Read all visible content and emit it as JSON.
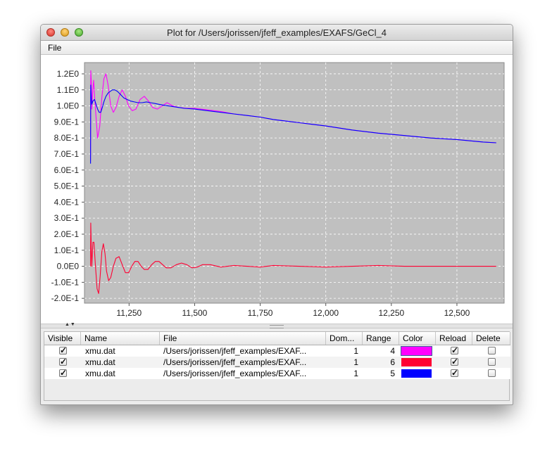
{
  "window": {
    "title": "Plot for /Users/jorissen/jfeff_examples/EXAFS/GeCl_4"
  },
  "menu": {
    "file": "File"
  },
  "chart_data": {
    "type": "line",
    "title": "",
    "xlabel": "",
    "ylabel": "",
    "xlim": [
      11080,
      12680
    ],
    "ylim": [
      -0.23,
      1.27
    ],
    "grid": true,
    "x_ticks": [
      11250,
      11500,
      11750,
      12000,
      12250,
      12500
    ],
    "x_tick_labels": [
      "11,250",
      "11,500",
      "11,750",
      "12,000",
      "12,250",
      "12,500"
    ],
    "y_ticks": [
      1.2,
      1.1,
      1.0,
      0.9,
      0.8,
      0.7,
      0.6,
      0.5,
      0.4,
      0.3,
      0.2,
      0.1,
      0.0,
      -0.1,
      -0.2
    ],
    "y_tick_labels": [
      "1.2E0",
      "1.1E0",
      "1.0E0",
      "9.0E-1",
      "8.0E-1",
      "7.0E-1",
      "6.0E-1",
      "5.0E-1",
      "4.0E-1",
      "3.0E-1",
      "2.0E-1",
      "1.0E-1",
      "0.0E0",
      "-1.0E-1",
      "-2.0E-1"
    ],
    "series": [
      {
        "color": "#ff00ff",
        "x": [
          11103,
          11104,
          11106,
          11108,
          11111,
          11115,
          11119,
          11124,
          11130,
          11138,
          11146,
          11154,
          11162,
          11170,
          11180,
          11190,
          11200,
          11212,
          11224,
          11236,
          11248,
          11262,
          11276,
          11292,
          11308,
          11324,
          11340,
          11358,
          11376,
          11395,
          11416,
          11440,
          11470,
          11500,
          11550,
          11600,
          11650,
          11700,
          11750,
          11800,
          11850,
          11900,
          11950,
          12000,
          12100,
          12200,
          12300,
          12400,
          12500,
          12600,
          12650
        ],
        "y": [
          0.66,
          1.22,
          1.15,
          0.98,
          1.08,
          1.16,
          1.05,
          0.93,
          0.8,
          0.87,
          1.05,
          1.17,
          1.2,
          1.13,
          1.0,
          0.96,
          0.99,
          1.06,
          1.1,
          1.06,
          1.0,
          0.97,
          0.98,
          1.04,
          1.06,
          1.03,
          0.99,
          0.98,
          1.0,
          1.02,
          1.0,
          0.99,
          0.985,
          0.985,
          0.975,
          0.965,
          0.95,
          0.94,
          0.93,
          0.915,
          0.905,
          0.895,
          0.885,
          0.875,
          0.85,
          0.83,
          0.815,
          0.8,
          0.79,
          0.775,
          0.77
        ]
      },
      {
        "color": "#ff0033",
        "x": [
          11103,
          11104,
          11106,
          11108,
          11112,
          11116,
          11122,
          11128,
          11134,
          11140,
          11146,
          11152,
          11158,
          11164,
          11172,
          11180,
          11190,
          11200,
          11212,
          11224,
          11236,
          11248,
          11260,
          11272,
          11284,
          11296,
          11308,
          11322,
          11336,
          11350,
          11364,
          11378,
          11392,
          11410,
          11430,
          11450,
          11470,
          11490,
          11510,
          11530,
          11560,
          11600,
          11650,
          11700,
          11750,
          11800,
          11900,
          12000,
          12100,
          12200,
          12300,
          12400,
          12500,
          12650
        ],
        "y": [
          0.0,
          0.27,
          0.1,
          0.0,
          0.15,
          0.15,
          0.0,
          -0.14,
          -0.17,
          -0.06,
          0.09,
          0.14,
          0.08,
          -0.03,
          -0.09,
          -0.07,
          0.0,
          0.05,
          0.06,
          0.01,
          -0.04,
          -0.04,
          0.0,
          0.03,
          0.03,
          0.0,
          -0.02,
          -0.02,
          0.01,
          0.03,
          0.03,
          0.01,
          -0.01,
          -0.01,
          0.01,
          0.02,
          0.01,
          -0.01,
          -0.005,
          0.01,
          0.01,
          -0.005,
          0.005,
          0.0,
          -0.005,
          0.005,
          0.0,
          -0.005,
          0.0,
          0.005,
          0.0,
          0.0,
          0.0,
          0.0
        ]
      },
      {
        "color": "#0000ff",
        "x": [
          11103,
          11104,
          11106,
          11108,
          11112,
          11118,
          11124,
          11130,
          11136,
          11142,
          11148,
          11155,
          11162,
          11170,
          11178,
          11186,
          11196,
          11206,
          11218,
          11230,
          11242,
          11256,
          11270,
          11284,
          11300,
          11316,
          11332,
          11348,
          11364,
          11380,
          11400,
          11420,
          11440,
          11460,
          11500,
          11550,
          11600,
          11650,
          11700,
          11750,
          11800,
          11850,
          11900,
          11950,
          12000,
          12100,
          12200,
          12300,
          12400,
          12500,
          12600,
          12650
        ],
        "y": [
          0.64,
          1.13,
          1.05,
          1.01,
          1.03,
          1.04,
          1.01,
          0.98,
          0.96,
          0.96,
          0.99,
          1.03,
          1.06,
          1.08,
          1.09,
          1.1,
          1.1,
          1.09,
          1.07,
          1.05,
          1.04,
          1.03,
          1.025,
          1.02,
          1.02,
          1.025,
          1.02,
          1.015,
          1.01,
          1.005,
          1.0,
          0.995,
          0.99,
          0.985,
          0.98,
          0.97,
          0.96,
          0.95,
          0.94,
          0.93,
          0.915,
          0.905,
          0.895,
          0.885,
          0.875,
          0.85,
          0.83,
          0.815,
          0.8,
          0.79,
          0.775,
          0.77
        ]
      }
    ]
  },
  "table": {
    "headers": [
      "Visible",
      "Name",
      "File",
      "Dom...",
      "Range",
      "Color",
      "Reload",
      "Delete"
    ],
    "rows": [
      {
        "name": "xmu.dat",
        "file": "/Users/jorissen/jfeff_examples/EXAF...",
        "domain": "1",
        "range": "4",
        "color": "#ff00ff",
        "visible": true,
        "reload": true,
        "delete": false
      },
      {
        "name": "xmu.dat",
        "file": "/Users/jorissen/jfeff_examples/EXAF...",
        "domain": "1",
        "range": "6",
        "color": "#ff0033",
        "visible": true,
        "reload": true,
        "delete": false
      },
      {
        "name": "xmu.dat",
        "file": "/Users/jorissen/jfeff_examples/EXAF...",
        "domain": "1",
        "range": "5",
        "color": "#0000ff",
        "visible": true,
        "reload": true,
        "delete": false
      }
    ]
  }
}
